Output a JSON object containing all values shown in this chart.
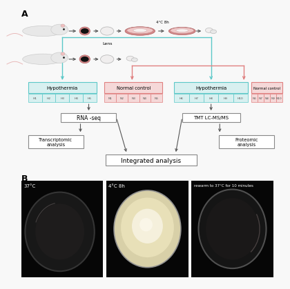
{
  "panel_a_label": "A",
  "panel_b_label": "B",
  "bg_color": "#f8f8f8",
  "cyan_color": "#5bc8c8",
  "pink_color": "#e08080",
  "arrow_color": "#555555",
  "hypo_box_bg": "#d8f0f0",
  "hypo_border": "#5bc8c8",
  "norm_box_bg": "#f5d8d8",
  "norm_border": "#e08080",
  "proc_box_bg": "#ffffff",
  "proc_border": "#888888",
  "sample_labels_left_hypo": [
    "H1",
    "H2",
    "H3",
    "H4",
    "H5"
  ],
  "sample_labels_left_normal": [
    "N1",
    "N2",
    "N3",
    "N4",
    "N5"
  ],
  "sample_labels_right_hypo": [
    "H6",
    "H7",
    "H8",
    "H9",
    "H10"
  ],
  "sample_labels_right_normal": [
    "N6",
    "N7",
    "N8",
    "N9",
    "N10"
  ],
  "lens_label": "Lens",
  "temp_label": "4°C 8h",
  "rna_seq_label": "RNA -seq",
  "tmt_label": "TMT LC-MS/MS",
  "transcriptomic_label": "Transcriptomic\nanalysis",
  "proteomic_label": "Proteomic\nanalysis",
  "integrated_label": "Integrated analysis",
  "b1_label": "37°C",
  "b2_label": "4°C 8h",
  "b3_label": "rewarm to 37°C for 10 minutes",
  "hypo_left_label": "Hypothermia",
  "normal_left_label": "Normal control",
  "hypo_right_label": "Hypothermia",
  "normal_right_label": "Normal control",
  "eye_color": "#d4888a",
  "lens_color": "#f0eeee",
  "lens_edge": "#bbbbbb",
  "dish_outer": "#d4888a",
  "dish_inner": "#f0c8c8",
  "rat_body": "#e8e8e8",
  "rat_tail": "#e8b8b8"
}
